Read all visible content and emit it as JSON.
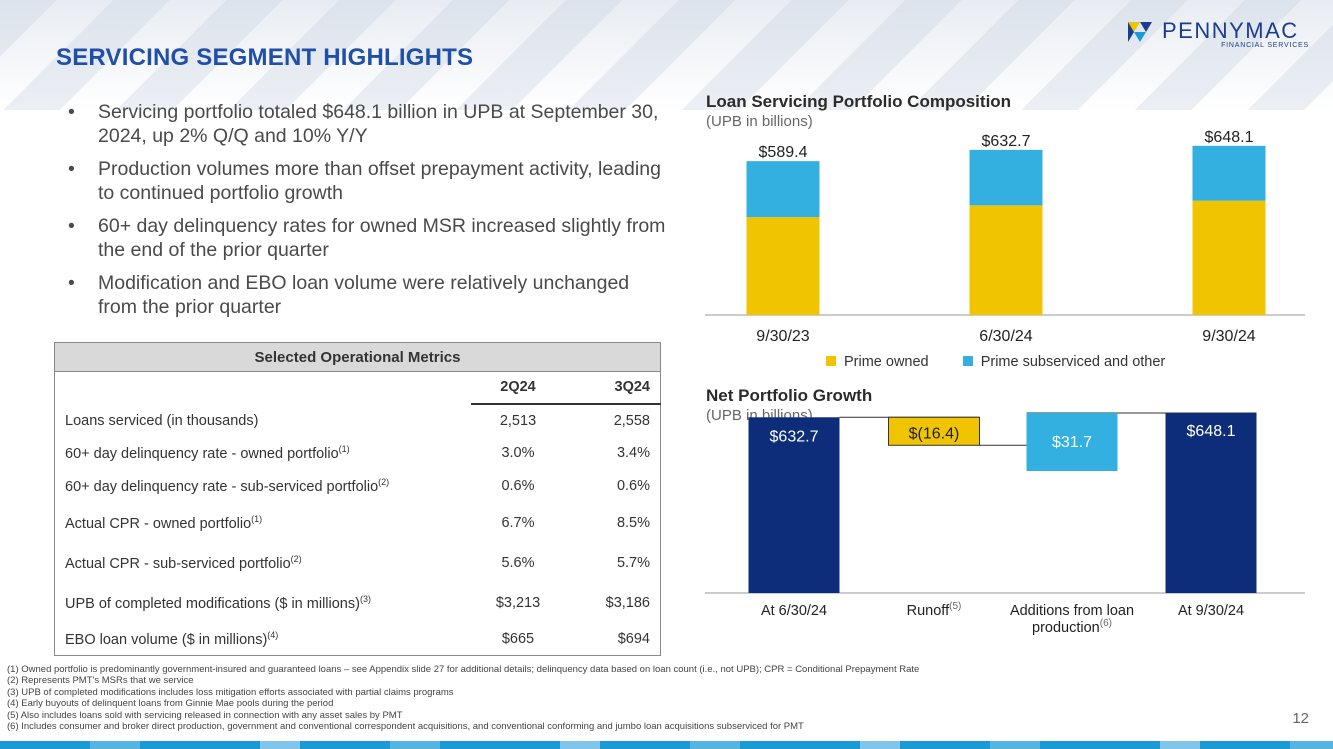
{
  "header": {
    "title": "SERVICING SEGMENT HIGHLIGHTS",
    "logo_name": "PENNYMAC",
    "logo_sub": "FINANCIAL SERVICES"
  },
  "bullets": [
    "Servicing portfolio totaled $648.1 billion in UPB at September 30, 2024, up 2% Q/Q and 10% Y/Y",
    "Production volumes more than offset prepayment activity, leading to continued portfolio growth",
    "60+ day delinquency rates for owned MSR increased slightly from the end of the prior quarter",
    "Modification and EBO loan volume were relatively unchanged from the prior quarter"
  ],
  "bullet_symbol": "•",
  "table": {
    "title": "Selected Operational Metrics",
    "col1": "2Q24",
    "col2": "3Q24",
    "rows": [
      {
        "label": "Loans serviced (in thousands)",
        "sup": "",
        "v1": "2,513",
        "v2": "2,558"
      },
      {
        "label": "60+ day delinquency rate - owned portfolio",
        "sup": "(1)",
        "v1": "3.0%",
        "v2": "3.4%"
      },
      {
        "label": "60+ day delinquency rate - sub-serviced portfolio",
        "sup": "(2)",
        "v1": "0.6%",
        "v2": "0.6%"
      },
      {
        "label": "Actual CPR - owned portfolio",
        "sup": "(1)",
        "v1": "6.7%",
        "v2": "8.5%"
      },
      {
        "label": "Actual CPR - sub-serviced portfolio",
        "sup": "(2)",
        "v1": "5.6%",
        "v2": "5.7%"
      },
      {
        "label": "UPB of completed modifications ($ in millions)",
        "sup": "(3)",
        "v1": "$3,213",
        "v2": "$3,186"
      },
      {
        "label": "EBO loan volume ($ in millions)",
        "sup": "(4)",
        "v1": "$665",
        "v2": "$694"
      }
    ]
  },
  "colors": {
    "title_blue": "#1f4fa8",
    "prime_owned": "#f0c400",
    "prime_subserviced": "#33b0e0",
    "navy": "#0d2d7a"
  },
  "chart_data": [
    {
      "type": "bar",
      "stacked": true,
      "title": "Loan Servicing Portfolio Composition",
      "subtitle": "(UPB in billions)",
      "categories": [
        "9/30/23",
        "6/30/24",
        "9/30/24"
      ],
      "totals_labels": [
        "$589.4",
        "$632.7",
        "$648.1"
      ],
      "totals": [
        589.4,
        632.7,
        648.1
      ],
      "series": [
        {
          "name": "Prime owned",
          "values": [
            375,
            420,
            438
          ]
        },
        {
          "name": "Prime subserviced and other",
          "values": [
            214.4,
            212.7,
            210.1
          ]
        }
      ],
      "legend": "bottom"
    },
    {
      "type": "bar",
      "waterfall": true,
      "title": "Net Portfolio Growth",
      "subtitle": "(UPB in billions)",
      "categories": [
        "At 6/30/24",
        "Runoff",
        "Additions from loan production",
        "At 9/30/24"
      ],
      "category_lines": [
        [
          "At 6/30/24"
        ],
        [
          "Runoff"
        ],
        [
          "Additions from loan",
          "production"
        ],
        [
          "At 9/30/24"
        ]
      ],
      "category_sups": [
        "",
        "(5)",
        "(6)",
        ""
      ],
      "values": [
        632.7,
        -16.4,
        31.7,
        648.1
      ],
      "labels": [
        "$632.7",
        "$(16.4)",
        "$31.7",
        "$648.1"
      ]
    }
  ],
  "footnotes": [
    "(1) Owned portfolio is predominantly government-insured and guaranteed loans – see Appendix slide 27 for additional details; delinquency data based on loan count (i.e., not UPB); CPR = Conditional Prepayment Rate",
    "(2) Represents PMT's MSRs that we service",
    "(3) UPB of completed modifications includes loss mitigation efforts associated with partial claims programs",
    "(4) Early buyouts of delinquent loans from Ginnie Mae pools during the period",
    "(5) Also includes loans sold with servicing released in connection with any asset sales by PMT",
    "(6) Includes consumer and broker direct production, government and conventional correspondent acquisitions, and conventional conforming and jumbo loan acquisitions subserviced for PMT"
  ],
  "page_number": "12"
}
